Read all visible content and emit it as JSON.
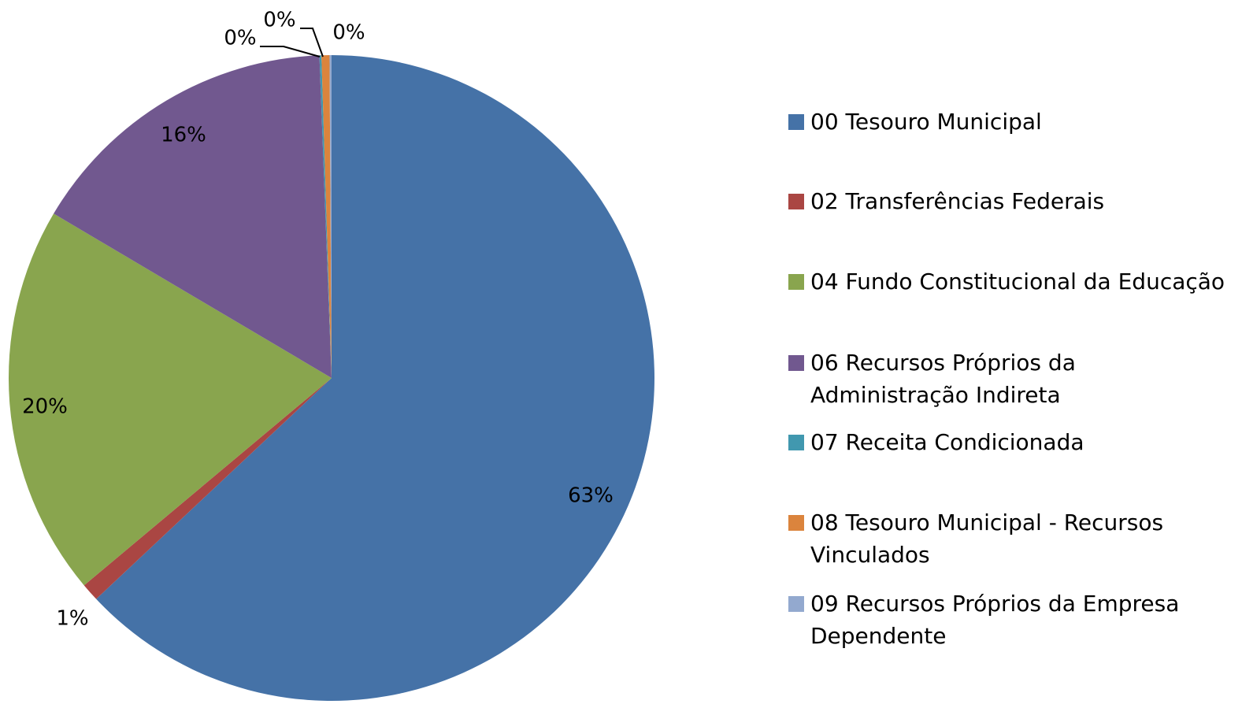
{
  "chart_data": {
    "type": "pie",
    "categories": [
      "00 Tesouro Municipal",
      "02 Transferências Federais",
      "04 Fundo Constitucional da Educação",
      "06 Recursos Próprios da Administração Indireta",
      "07 Receita Condicionada",
      "08 Tesouro Municipal - Recursos Vinculados",
      "09 Recursos Próprios da Empresa Dependente"
    ],
    "values": [
      63.0,
      0.9,
      19.6,
      15.9,
      0.1,
      0.4,
      0.1
    ],
    "value_labels": [
      "63%",
      "1%",
      "20%",
      "16%",
      "0%",
      "0%",
      "0%"
    ],
    "colors": [
      "#4572a7",
      "#aa4643",
      "#89a54e",
      "#71588f",
      "#4198af",
      "#db843d",
      "#93a9cf"
    ],
    "legend": "right"
  }
}
